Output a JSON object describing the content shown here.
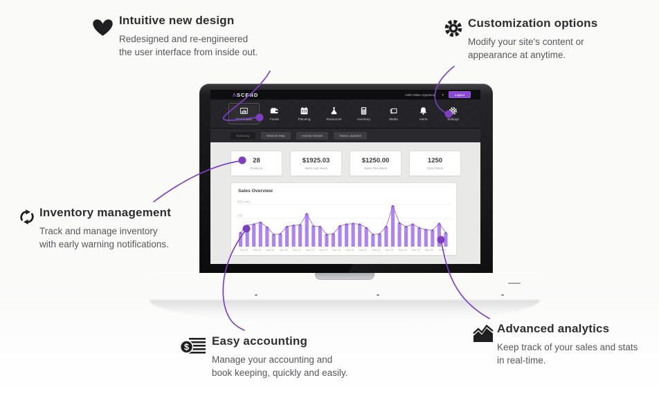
{
  "features": {
    "intuitive": {
      "icon": "heart-icon",
      "title": "Intuitive new design",
      "body1": "Redesigned and re-engineered",
      "body2": "the user interface from inside out."
    },
    "customization": {
      "icon": "gear-large-icon",
      "title": "Customization options",
      "body1": "Modify your site's content or",
      "body2": "appearance at anytime."
    },
    "inventory": {
      "icon": "sync-icon",
      "title": "Inventory management",
      "body1": "Track and manage inventory",
      "body2": "with early warning notifications."
    },
    "accounting": {
      "icon": "coin-ledger-icon",
      "title": "Easy accounting",
      "body1": "Manage your accounting and",
      "body2": "book keeping, quickly and easily."
    },
    "analytics": {
      "icon": "area-chart-icon",
      "title": "Advanced analytics",
      "body1": "Keep track of your sales and stats",
      "body2": "in real-time."
    }
  },
  "dashboard": {
    "logo": {
      "mark": "Λ",
      "text": "SCEND"
    },
    "greeting": "Hello Milan Appolonia",
    "caret": "▼",
    "logout_label": "Logout",
    "nav": [
      {
        "label": "Dashboard",
        "icon": "bar-chart-icon",
        "active": true
      },
      {
        "label": "Funds",
        "icon": "wallet-icon",
        "active": false
      },
      {
        "label": "Planning",
        "icon": "calendar-icon",
        "active": false
      },
      {
        "label": "Resources",
        "icon": "flask-icon",
        "active": false
      },
      {
        "label": "Inventory",
        "icon": "calculator-icon",
        "active": false
      },
      {
        "label": "Media",
        "icon": "media-icon",
        "active": false
      },
      {
        "label": "Alerts",
        "icon": "bell-icon",
        "active": false
      },
      {
        "label": "Settings",
        "icon": "gear-icon",
        "active": false
      }
    ],
    "tabs": [
      {
        "label": "Summary",
        "active": true
      },
      {
        "label": "Network Map",
        "active": false
      },
      {
        "label": "Activity Stream",
        "active": false
      },
      {
        "label": "Status Updates",
        "active": false
      }
    ],
    "stats": [
      {
        "value": "28",
        "label": "Products"
      },
      {
        "value": "$1925.03",
        "label": "Sales Last Week"
      },
      {
        "value": "$1250.00",
        "label": "Sales This Week"
      },
      {
        "value": "1250",
        "label": "Total Orders"
      }
    ]
  },
  "chart_data": {
    "type": "bar",
    "title": "Sales Overview",
    "ylabel": "Units",
    "ylim": [
      0,
      500
    ],
    "y_ticks": [
      "500 Units",
      "250"
    ],
    "grid": true,
    "categories": [
      "Sep 02",
      "Sep 04",
      "Sep 06",
      "Sep 08",
      "Sep 10",
      "Sep 12",
      "Sep 14",
      "Sep 16",
      "Sep 18",
      "Sep 20",
      "Sep 22",
      "Sep 24",
      "Sep 26",
      "Sep 28",
      "Sep 30",
      "Oct 02"
    ],
    "labels_every_n_bars": 2,
    "values": [
      115,
      175,
      185,
      200,
      160,
      100,
      105,
      165,
      175,
      180,
      270,
      170,
      165,
      100,
      105,
      170,
      185,
      190,
      185,
      155,
      100,
      105,
      165,
      335,
      195,
      165,
      185,
      155,
      140,
      135,
      190,
      115
    ],
    "bar_color": "#ae84ee",
    "line_color": "#9a6ae0",
    "dot_color": "#7f45c8"
  },
  "colors": {
    "accent_purple": "#7c3fc4",
    "logout_purple": "#8a4ad0",
    "dark_text": "#2e2e31",
    "body_text": "#56575b"
  }
}
